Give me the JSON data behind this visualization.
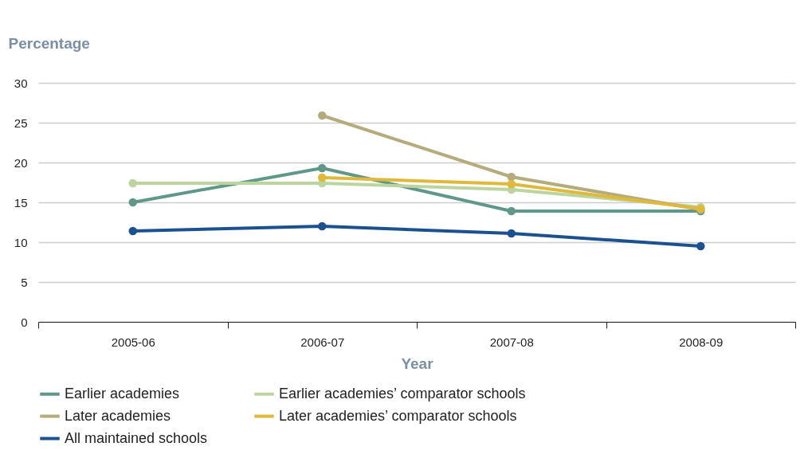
{
  "chart_data": {
    "type": "line",
    "ylabel": "Percentage",
    "xlabel": "Year",
    "categories": [
      "2005-06",
      "2006-07",
      "2007-08",
      "2008-09"
    ],
    "series": [
      {
        "name": "Earlier academies",
        "color": "#5f9889",
        "values": [
          15.0,
          19.3,
          13.9,
          13.9
        ]
      },
      {
        "name": "Earlier academies’ comparator schools",
        "color": "#bcd59f",
        "values": [
          17.4,
          17.4,
          16.6,
          14.4
        ]
      },
      {
        "name": "Later academies",
        "color": "#b5ac7c",
        "values": [
          null,
          25.9,
          18.2,
          14.1
        ]
      },
      {
        "name": "Later academies’ comparator schools",
        "color": "#e0b83a",
        "values": [
          null,
          18.1,
          17.3,
          14.2
        ]
      },
      {
        "name": "All maintained schools",
        "color": "#1c5190",
        "values": [
          11.4,
          12.0,
          11.1,
          9.5
        ]
      }
    ],
    "ylim": [
      0,
      30
    ],
    "yticks": [
      0,
      5,
      10,
      15,
      20,
      25,
      30
    ],
    "grid": "y",
    "legend": "bottom",
    "marker": "circle",
    "line_style": "solid"
  }
}
